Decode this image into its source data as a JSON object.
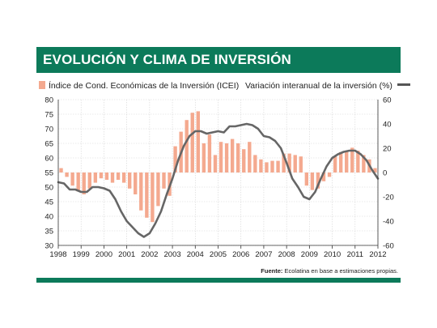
{
  "title": "EVOLUCIÓN Y CLIMA DE INVERSIÓN",
  "legend": {
    "bars": "Índice de Cond. Económicas de la Inversión (ICEI)",
    "line": "Variación interanual de la inversión (%)"
  },
  "source": {
    "label": "Fuente:",
    "text": "Ecolatina en base a estimaciones propias."
  },
  "colors": {
    "brand": "#0c7a5a",
    "bars": "#f4a98f",
    "line": "#666666"
  },
  "chart_data": {
    "type": "bar",
    "x_ticks": [
      "1998",
      "1999",
      "2000",
      "2001",
      "2002",
      "2003",
      "2004",
      "2005",
      "2006",
      "2007",
      "2008",
      "2009",
      "2010",
      "2011",
      "2012"
    ],
    "left_axis": {
      "ylim": [
        30,
        80
      ],
      "ticks": [
        30,
        35,
        40,
        45,
        50,
        55,
        60,
        65,
        70,
        75,
        80
      ],
      "baseline": 55
    },
    "right_axis": {
      "ylim": [
        -60,
        60
      ],
      "ticks": [
        -60,
        -40,
        -20,
        0,
        20,
        40,
        60
      ]
    },
    "series": [
      {
        "name": "Índice de Cond. Económicas de la Inversión (ICEI)",
        "type": "bar",
        "axis": "left",
        "x": [
          1998.125,
          1998.375,
          1998.625,
          1998.875,
          1999.125,
          1999.375,
          1999.625,
          1999.875,
          2000.125,
          2000.375,
          2000.625,
          2000.875,
          2001.125,
          2001.375,
          2001.625,
          2001.875,
          2002.125,
          2002.375,
          2002.625,
          2002.875,
          2003.125,
          2003.375,
          2003.625,
          2003.875,
          2004.125,
          2004.375,
          2004.625,
          2004.875,
          2005.125,
          2005.375,
          2005.625,
          2005.875,
          2006.125,
          2006.375,
          2006.625,
          2006.875,
          2007.125,
          2007.375,
          2007.625,
          2007.875,
          2008.125,
          2008.375,
          2008.625,
          2008.875,
          2009.125,
          2009.375,
          2009.625,
          2009.875,
          2010.125,
          2010.375,
          2010.625,
          2010.875,
          2011.125,
          2011.375,
          2011.625,
          2011.875
        ],
        "values": [
          56.5,
          53.5,
          50.5,
          48.5,
          47.5,
          49.5,
          51.5,
          53,
          52.5,
          51.5,
          52.5,
          51.5,
          49.5,
          47.5,
          42,
          39.5,
          38,
          43.5,
          49.5,
          47,
          64,
          69,
          73,
          75.5,
          76,
          65,
          68,
          61,
          65.5,
          65,
          66.5,
          65,
          63,
          65.5,
          61,
          59.5,
          58.5,
          59,
          59,
          61.5,
          61.5,
          61,
          60.5,
          50.5,
          49,
          49.5,
          52,
          53.5,
          60.5,
          62,
          62.5,
          63.5,
          62.5,
          61,
          59.5,
          56.5
        ]
      },
      {
        "name": "Variación interanual de la inversión (%)",
        "type": "line",
        "axis": "right",
        "x": [
          1998.0,
          1998.25,
          1998.5,
          1998.75,
          1999.0,
          1999.25,
          1999.5,
          1999.75,
          2000.0,
          2000.25,
          2000.5,
          2000.75,
          2001.0,
          2001.25,
          2001.5,
          2001.75,
          2002.0,
          2002.25,
          2002.5,
          2002.75,
          2003.0,
          2003.25,
          2003.5,
          2003.75,
          2004.0,
          2004.25,
          2004.5,
          2004.75,
          2005.0,
          2005.25,
          2005.5,
          2005.75,
          2006.0,
          2006.25,
          2006.5,
          2006.75,
          2007.0,
          2007.25,
          2007.5,
          2007.75,
          2008.0,
          2008.25,
          2008.5,
          2008.75,
          2009.0,
          2009.25,
          2009.5,
          2009.75,
          2010.0,
          2010.25,
          2010.5,
          2010.75,
          2011.0,
          2011.25,
          2011.5,
          2011.75,
          2012.0
        ],
        "values": [
          -8,
          -9,
          -14,
          -14,
          -16,
          -16,
          -12,
          -12,
          -13,
          -15,
          -22,
          -32,
          -40,
          -45,
          -50,
          -53,
          -50,
          -42,
          -32,
          -18,
          -5,
          10,
          22,
          30,
          34,
          34,
          32,
          33,
          34,
          33,
          38,
          38,
          39,
          40,
          39,
          36,
          30,
          29,
          26,
          20,
          8,
          -5,
          -12,
          -20,
          -22,
          -16,
          -5,
          5,
          12,
          15,
          17,
          18,
          18,
          15,
          10,
          2,
          -5
        ]
      }
    ],
    "grid": true
  }
}
